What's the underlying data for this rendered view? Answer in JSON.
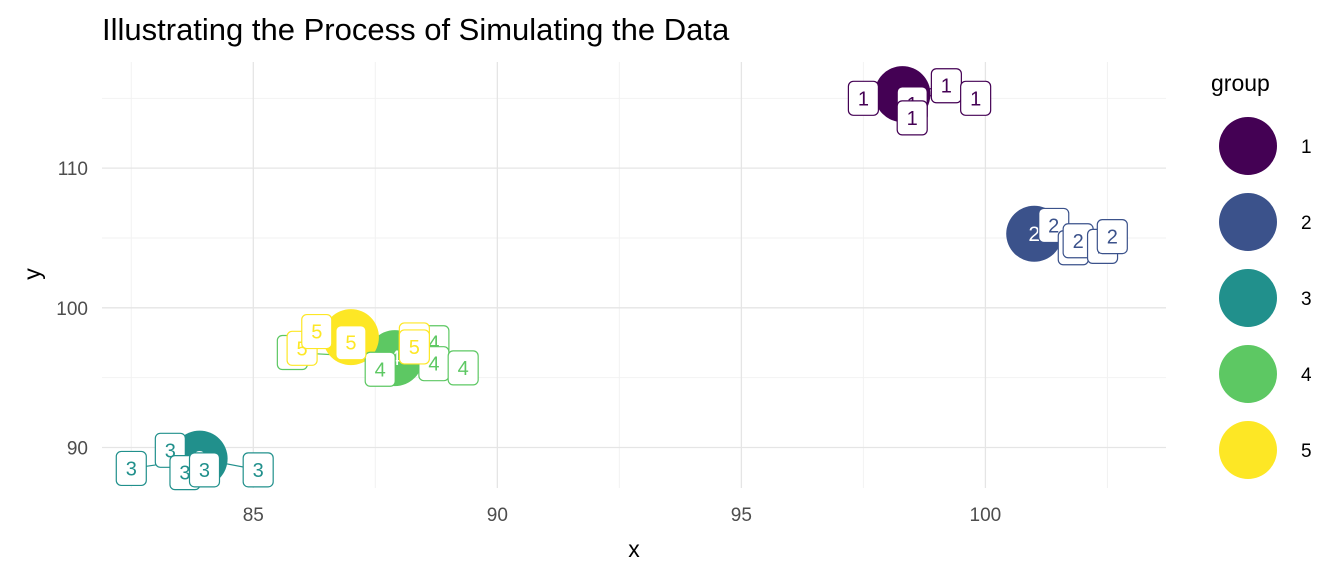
{
  "chart_data": {
    "type": "scatter",
    "title": "Illustrating the Process of Simulating the Data",
    "xlabel": "x",
    "ylabel": "y",
    "xlim": [
      81.9,
      103.7
    ],
    "ylim": [
      87.1,
      117.6
    ],
    "x_ticks": [
      85,
      90,
      95,
      100
    ],
    "y_ticks": [
      90,
      100,
      110
    ],
    "grid": true,
    "legend_title": "group",
    "legend_position": "right",
    "groups": [
      {
        "name": "1",
        "color": "#440154",
        "center": {
          "x": 98.3,
          "y": 115.3
        },
        "points": [
          {
            "x": 97.5,
            "y": 115.0
          },
          {
            "x": 98.5,
            "y": 114.6
          },
          {
            "x": 98.5,
            "y": 113.6
          },
          {
            "x": 99.2,
            "y": 115.9
          },
          {
            "x": 99.8,
            "y": 115.0
          }
        ]
      },
      {
        "name": "2",
        "color": "#3B528B",
        "center": {
          "x": 101.0,
          "y": 105.3
        },
        "points": [
          {
            "x": 101.4,
            "y": 105.9
          },
          {
            "x": 101.8,
            "y": 104.3
          },
          {
            "x": 101.9,
            "y": 104.8
          },
          {
            "x": 102.4,
            "y": 104.4
          },
          {
            "x": 102.6,
            "y": 105.1
          }
        ]
      },
      {
        "name": "3",
        "color": "#21908C",
        "center": {
          "x": 83.9,
          "y": 89.2
        },
        "points": [
          {
            "x": 82.5,
            "y": 88.5
          },
          {
            "x": 83.3,
            "y": 89.8
          },
          {
            "x": 83.6,
            "y": 88.2
          },
          {
            "x": 84.0,
            "y": 88.4
          },
          {
            "x": 85.1,
            "y": 88.4
          }
        ]
      },
      {
        "name": "4",
        "color": "#5DC863",
        "center": {
          "x": 87.9,
          "y": 96.4
        },
        "points": [
          {
            "x": 85.8,
            "y": 96.8
          },
          {
            "x": 87.6,
            "y": 95.6
          },
          {
            "x": 88.7,
            "y": 97.5
          },
          {
            "x": 88.7,
            "y": 96.0
          },
          {
            "x": 89.3,
            "y": 95.7
          }
        ]
      },
      {
        "name": "5",
        "color": "#FDE725",
        "center": {
          "x": 87.0,
          "y": 97.9
        },
        "points": [
          {
            "x": 86.0,
            "y": 97.1
          },
          {
            "x": 86.3,
            "y": 98.3
          },
          {
            "x": 87.0,
            "y": 97.5
          },
          {
            "x": 88.3,
            "y": 97.7
          },
          {
            "x": 88.3,
            "y": 97.2
          }
        ]
      }
    ]
  }
}
